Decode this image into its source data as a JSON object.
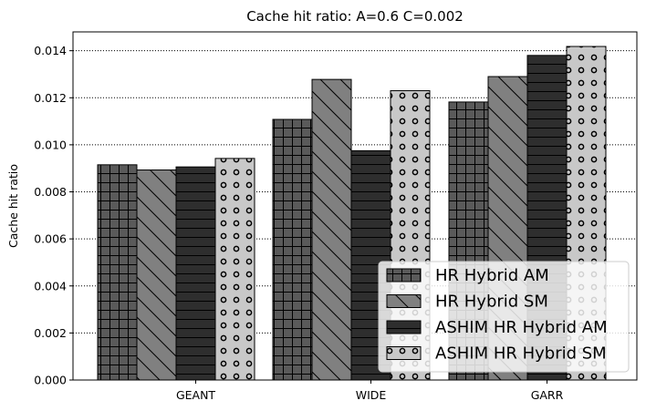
{
  "chart_data": {
    "type": "bar",
    "title": "Cache hit ratio: A=0.6 C=0.002",
    "xlabel": "",
    "ylabel": "Cache hit ratio",
    "categories": [
      "GEANT",
      "WIDE",
      "GARR"
    ],
    "series": [
      {
        "name": "HR Hybrid AM",
        "values": [
          0.00915,
          0.01108,
          0.01182
        ],
        "color": "#5a5a5a",
        "pattern": "grid"
      },
      {
        "name": "HR Hybrid SM",
        "values": [
          0.00893,
          0.01278,
          0.0129
        ],
        "color": "#808080",
        "pattern": "diagonal"
      },
      {
        "name": "ASHIM HR Hybrid AM",
        "values": [
          0.00906,
          0.00975,
          0.0138
        ],
        "color": "#2e2e2e",
        "pattern": "horizontal"
      },
      {
        "name": "ASHIM HR Hybrid SM",
        "values": [
          0.00942,
          0.0123,
          0.01418
        ],
        "color": "#c8c8c8",
        "pattern": "circles"
      }
    ],
    "ylim": [
      0,
      0.0148
    ],
    "yticks": [
      "0.000",
      "0.002",
      "0.004",
      "0.006",
      "0.008",
      "0.010",
      "0.012",
      "0.014"
    ],
    "grid": "horizontal dotted",
    "legend_position": "lower-right"
  }
}
